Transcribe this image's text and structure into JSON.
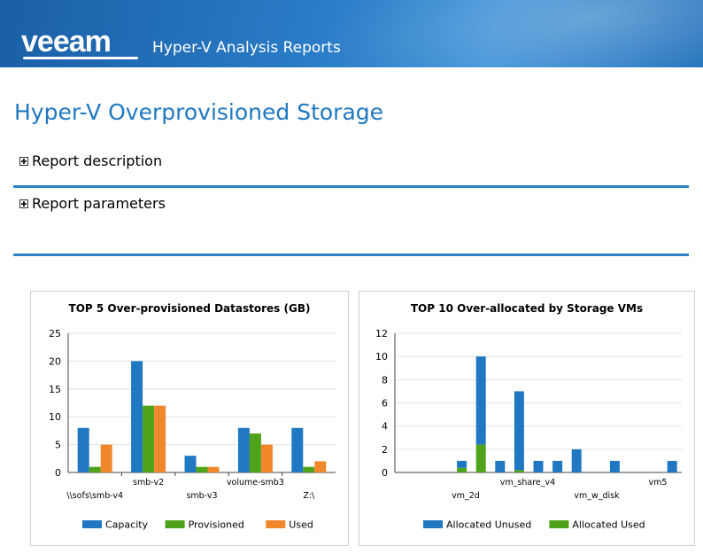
{
  "header": {
    "logo_text": "veeam",
    "app_title": "Hyper-V Analysis Reports"
  },
  "page_title": "Hyper-V Overprovisioned Storage",
  "sections": [
    {
      "label": "Report description"
    },
    {
      "label": "Report parameters"
    }
  ],
  "colors": {
    "capacity": "#1f78c1",
    "provisioned": "#4ea31b",
    "used": "#f0882b",
    "rule": "#2e82c6",
    "title": "#1f78c1"
  },
  "chart_data": [
    {
      "type": "bar",
      "title": "TOP 5 Over-provisioned Datastores (GB)",
      "categories": [
        "\\\\sofs\\smb-v4",
        "smb-v2",
        "smb-v3",
        "volume-smb3",
        "Z:\\"
      ],
      "series": [
        {
          "name": "Capacity",
          "values": [
            8,
            20,
            3,
            8,
            8
          ]
        },
        {
          "name": "Provisioned",
          "values": [
            1,
            12,
            1,
            7,
            1
          ]
        },
        {
          "name": "Used",
          "values": [
            5,
            12,
            1,
            5,
            2
          ]
        }
      ],
      "yticks": [
        "0",
        "5",
        "10",
        "15",
        "20",
        "25"
      ],
      "ylim": [
        0,
        25
      ],
      "grid": true,
      "legend": "bottom"
    },
    {
      "type": "bar",
      "stacked": true,
      "title": "TOP 10 Over-allocated by Storage VMs",
      "visible_category_labels": [
        "vm_2d",
        "vm_share_v4",
        "vm_w_disk",
        "vm5"
      ],
      "series": [
        {
          "name": "Allocated Unused",
          "values": [
            0,
            0,
            0,
            0.6,
            7.6,
            1,
            6.8,
            1,
            1,
            2,
            0,
            1,
            0,
            0,
            1
          ]
        },
        {
          "name": "Allocated Used",
          "values": [
            0,
            0,
            0,
            0.4,
            2.4,
            0,
            0.2,
            0,
            0,
            0,
            0,
            0,
            0,
            0,
            0
          ]
        }
      ],
      "yticks": [
        "0",
        "2",
        "4",
        "6",
        "8",
        "10",
        "12"
      ],
      "ylim": [
        0,
        12
      ],
      "grid": true,
      "legend": "bottom"
    }
  ]
}
